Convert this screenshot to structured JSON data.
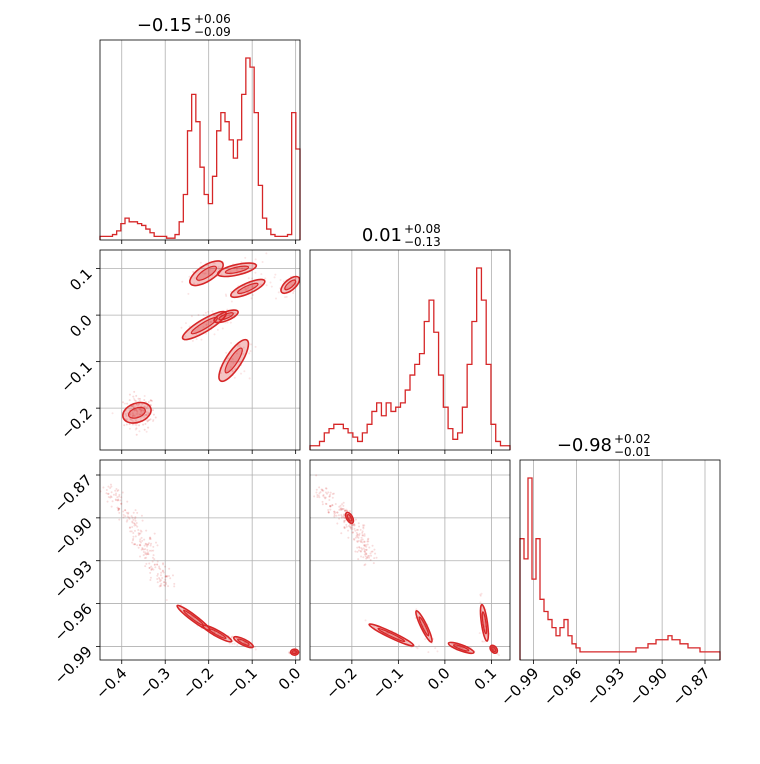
{
  "chart_data": {
    "type": "corner",
    "color": "#d62728",
    "grid": true,
    "parameters": [
      {
        "median": "−0.15",
        "plus": "+0.06",
        "minus": "−0.09",
        "range": [
          -0.45,
          0.01
        ],
        "ticks": [
          -0.4,
          -0.3,
          -0.2,
          -0.1,
          0.0
        ],
        "ticklabels": [
          "−0.4",
          "−0.3",
          "−0.2",
          "−0.1",
          "0.0"
        ]
      },
      {
        "median": "0.01",
        "plus": "+0.08",
        "minus": "−0.13",
        "range": [
          -0.29,
          0.14
        ],
        "ticks": [
          -0.2,
          -0.1,
          0.0,
          0.1
        ],
        "ticklabels": [
          "−0.2",
          "−0.1",
          "0.0",
          "0.1"
        ]
      },
      {
        "median": "−0.98",
        "plus": "+0.02",
        "minus": "−0.01",
        "range": [
          -0.9995,
          -0.8595
        ],
        "ticks": [
          -0.99,
          -0.96,
          -0.93,
          -0.9,
          -0.87
        ],
        "ticklabels": [
          "−0.99",
          "−0.96",
          "−0.93",
          "−0.90",
          "−0.87"
        ]
      }
    ],
    "histograms": [
      {
        "bins": [
          -0.45,
          0.01
        ],
        "counts": [
          2,
          2,
          2,
          3,
          5,
          9,
          12,
          10,
          10,
          9,
          8,
          6,
          4,
          2,
          2,
          2,
          1,
          1,
          3,
          10,
          25,
          60,
          80,
          65,
          40,
          25,
          20,
          35,
          60,
          70,
          65,
          55,
          45,
          55,
          80,
          100,
          95,
          70,
          30,
          12,
          6,
          3,
          2,
          2,
          2,
          3,
          70,
          50
        ]
      },
      {
        "bins": [
          -0.29,
          0.14
        ],
        "counts": [
          2,
          2,
          4,
          8,
          10,
          12,
          12,
          10,
          8,
          6,
          4,
          8,
          12,
          18,
          22,
          16,
          22,
          18,
          20,
          22,
          28,
          35,
          40,
          45,
          60,
          70,
          55,
          35,
          20,
          10,
          5,
          8,
          20,
          40,
          60,
          85,
          70,
          40,
          12,
          4,
          2,
          2
        ]
      },
      {
        "bins": [
          -0.9995,
          -0.8595
        ],
        "counts": [
          30,
          25,
          45,
          20,
          30,
          15,
          12,
          10,
          8,
          6,
          8,
          10,
          6,
          4,
          3,
          2,
          2,
          2,
          2,
          2,
          2,
          2,
          2,
          2,
          2,
          2,
          2,
          2,
          2,
          3,
          3,
          3,
          4,
          4,
          5,
          5,
          5,
          6,
          5,
          5,
          4,
          4,
          3,
          3,
          3,
          2,
          2,
          2,
          2,
          2
        ]
      }
    ],
    "pairs": [
      {
        "x_param": 0,
        "y_param": 1,
        "clusters": [
          {
            "x": [
              -0.23,
              -0.18
            ],
            "y": [
              0.075,
              0.105
            ],
            "width": 0.018
          },
          {
            "x": [
              -0.17,
              -0.1
            ],
            "y": [
              0.09,
              0.105
            ],
            "width": 0.012
          },
          {
            "x": [
              -0.14,
              -0.08
            ],
            "y": [
              0.045,
              0.07
            ],
            "width": 0.012
          },
          {
            "x": [
              -0.025,
              0.0
            ],
            "y": [
              0.055,
              0.075
            ],
            "width": 0.012
          },
          {
            "x": [
              -0.25,
              -0.17
            ],
            "y": [
              -0.045,
              0.0
            ],
            "width": 0.014
          },
          {
            "x": [
              -0.18,
              -0.14
            ],
            "y": [
              -0.01,
              0.005
            ],
            "width": 0.01
          },
          {
            "x": [
              -0.165,
              -0.12
            ],
            "y": [
              -0.13,
              -0.065
            ],
            "width": 0.018
          },
          {
            "x": [
              -0.38,
              -0.35
            ],
            "y": [
              -0.215,
              -0.205
            ],
            "width": 0.022
          }
        ],
        "scatter_center": [
          -0.36,
          -0.21
        ],
        "scatter_spread": [
          0.03,
          0.03
        ]
      },
      {
        "x_param": 0,
        "y_param": 2,
        "clusters": [
          {
            "x": [
              -0.27,
              -0.2
            ],
            "y": [
              -0.962,
              -0.978
            ],
            "width": 0.004
          },
          {
            "x": [
              -0.21,
              -0.15
            ],
            "y": [
              -0.976,
              -0.986
            ],
            "width": 0.004
          },
          {
            "x": [
              -0.14,
              -0.1
            ],
            "y": [
              -0.984,
              -0.99
            ],
            "width": 0.003
          },
          {
            "x": [
              -0.01,
              0.005
            ],
            "y": [
              -0.994,
              -0.994
            ],
            "width": 0.002
          }
        ],
        "scatter_line": [
          [
            -0.43,
            -0.878
          ],
          [
            -0.36,
            -0.912
          ],
          [
            -0.3,
            -0.948
          ]
        ]
      },
      {
        "x_param": 1,
        "y_param": 2,
        "clusters": [
          {
            "x": [
              -0.16,
              -0.07
            ],
            "y": [
              -0.975,
              -0.989
            ],
            "width": 0.004
          },
          {
            "x": [
              -0.06,
              -0.03
            ],
            "y": [
              -0.966,
              -0.986
            ],
            "width": 0.004
          },
          {
            "x": [
              0.01,
              0.06
            ],
            "y": [
              -0.988,
              -0.994
            ],
            "width": 0.003
          },
          {
            "x": [
              0.08,
              0.09
            ],
            "y": [
              -0.962,
              -0.985
            ],
            "width": 0.005
          },
          {
            "x": [
              0.1,
              0.11
            ],
            "y": [
              -0.99,
              -0.994
            ],
            "width": 0.002
          },
          {
            "x": [
              -0.21,
              -0.2
            ],
            "y": [
              -0.897,
              -0.903
            ],
            "width": 0.003
          }
        ],
        "scatter_line": [
          [
            -0.27,
            -0.88
          ],
          [
            -0.2,
            -0.905
          ],
          [
            -0.16,
            -0.93
          ]
        ]
      }
    ]
  }
}
